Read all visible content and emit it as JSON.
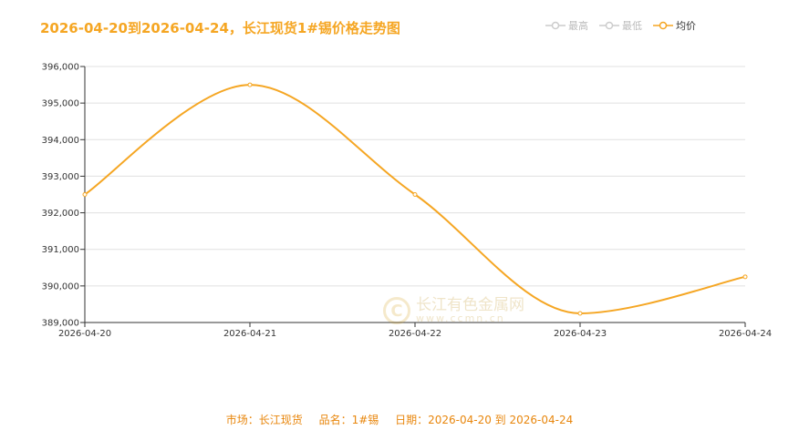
{
  "title": "2026-04-20到2026-04-24，长江现货1#锡价格走势图",
  "legend": [
    {
      "name": "最高",
      "color": "#cccccc",
      "active": false
    },
    {
      "name": "最低",
      "color": "#cccccc",
      "active": false
    },
    {
      "name": "均价",
      "color": "#f5a623",
      "active": true
    }
  ],
  "watermark": {
    "name": "长江有色金属网",
    "url": "www.ccmn.cn",
    "logo": "C"
  },
  "footer": {
    "market_label": "市场：长江现货",
    "product_label": "品名：1#锡",
    "date_label": "日期：2026-04-20 到 2026-04-24"
  },
  "chart_data": {
    "type": "line",
    "title": "2026-04-20到2026-04-24，长江现货1#锡价格走势图",
    "categories": [
      "2026-04-20",
      "2026-04-21",
      "2026-04-22",
      "2026-04-23",
      "2026-04-24"
    ],
    "series": [
      {
        "name": "均价",
        "values": [
          392500,
          395500,
          392500,
          389250,
          390250
        ],
        "color": "#f5a623",
        "smooth": true
      }
    ],
    "ylim": [
      389000,
      396000
    ],
    "yticks": [
      389000,
      390000,
      391000,
      392000,
      393000,
      394000,
      395000,
      396000
    ],
    "ytick_labels": [
      "389,000",
      "390,000",
      "391,000",
      "392,000",
      "393,000",
      "394,000",
      "395,000",
      "396,000"
    ],
    "grid": true,
    "legend_position": "top-right"
  }
}
